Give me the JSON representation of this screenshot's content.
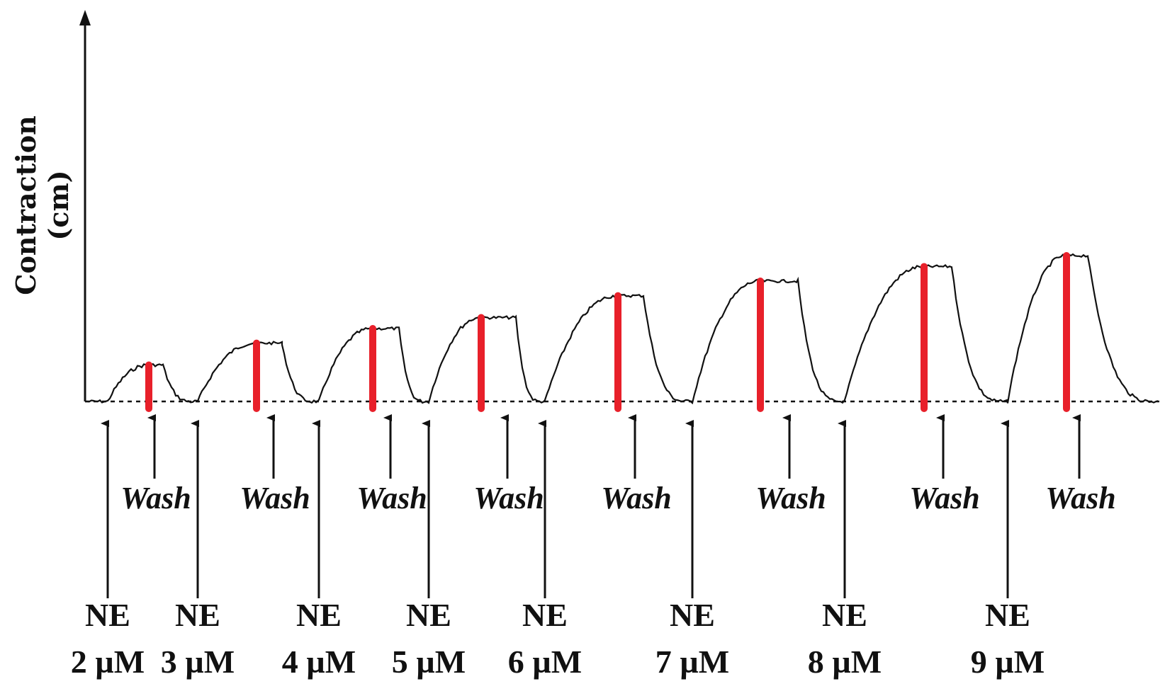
{
  "chart_data": {
    "type": "line",
    "ylabel": "Contraction (cm)",
    "ylabel_lines": [
      "Contraction",
      "(cm)"
    ],
    "baseline_style": "dashed",
    "grid": false,
    "trace_color": "#111111",
    "peak_marker_color": "#e8202a",
    "agonist_label": "NE",
    "wash_label": "Wash",
    "doses": [
      {
        "dose": "2 µM",
        "peak": 0.5
      },
      {
        "dose": "3 µM",
        "peak": 0.8
      },
      {
        "dose": "4 µM",
        "peak": 1.0
      },
      {
        "dose": "5 µM",
        "peak": 1.15
      },
      {
        "dose": "6 µM",
        "peak": 1.45
      },
      {
        "dose": "7 µM",
        "peak": 1.65
      },
      {
        "dose": "8 µM",
        "peak": 1.85
      },
      {
        "dose": "9 µM",
        "peak": 2.0
      }
    ],
    "ylim": [
      0,
      5.3
    ]
  }
}
